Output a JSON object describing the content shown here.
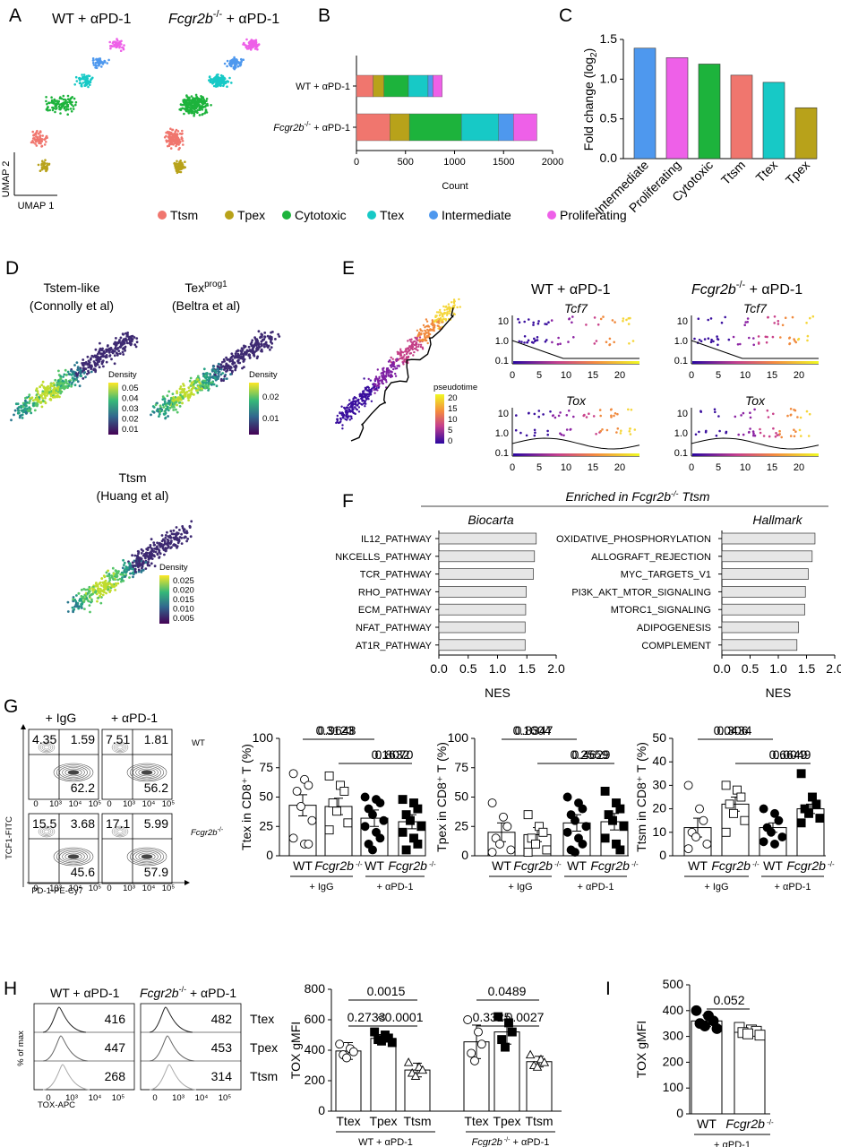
{
  "panels": {
    "A": {
      "label": "A",
      "title_wt": "WT + αPD-1",
      "title_ko_gene": "Fcgr2b",
      "title_ko_sup": "-/-",
      "title_ko_tail": " + αPD-1",
      "axis_x": "UMAP 1",
      "axis_y": "UMAP 2",
      "legend": [
        {
          "name": "Ttsm",
          "color": "#F0766E"
        },
        {
          "name": "Tpex",
          "color": "#B8A21A"
        },
        {
          "name": "Cytotoxic",
          "color": "#1DB33C"
        },
        {
          "name": "Ttex",
          "color": "#17C9C6"
        },
        {
          "name": "Intermediate",
          "color": "#4E98EE"
        },
        {
          "name": "Proliferating",
          "color": "#EE60E8"
        }
      ]
    },
    "D": {
      "label": "D",
      "tstem_line1": "Tstem-like",
      "tstem_line2": "(Connolly et al)",
      "texprog_main": "Tex",
      "texprog_sup": "prog1",
      "texprog_line2": "(Beltra et al)",
      "ttsm_line1": "Ttsm",
      "ttsm_line2": "(Huang et al)",
      "density_label": "Density",
      "scale1": [
        "0.05",
        "0.04",
        "0.03",
        "0.02",
        "0.01"
      ],
      "scale2": [
        "0.02",
        "0.01"
      ],
      "scale3": [
        "0.025",
        "0.020",
        "0.015",
        "0.010",
        "0.005"
      ]
    },
    "E": {
      "label": "E",
      "pseudotime_label": "pseudotime",
      "pseudotime_ticks": [
        "20",
        "15",
        "10",
        "5",
        "0"
      ],
      "wt_title": "WT + αPD-1",
      "ko_title_gene": "Fcgr2b",
      "ko_title_sup": "-/-",
      "ko_title_tail": " + αPD-1",
      "gene1": "Tcf7",
      "gene2": "Tox",
      "y_ticks": [
        "10",
        "1.0",
        "0.1"
      ],
      "x_ticks": [
        "0",
        "5",
        "10",
        "15",
        "20"
      ]
    },
    "F": {
      "label": "F",
      "header_pre": "Enriched in ",
      "header_gene": "Fcgr2b",
      "header_sup": "-/-",
      "header_post": " Ttsm",
      "biocarta_title": "Biocarta",
      "hallmark_title": "Hallmark",
      "xlabel": "NES",
      "x_ticks": [
        "0.0",
        "0.5",
        "1.0",
        "1.5",
        "2.0"
      ]
    },
    "G": {
      "label": "G",
      "col1": "+ IgG",
      "col2": "+ αPD-1",
      "row_wt": "WT",
      "row_ko_gene": "Fcgr2b",
      "row_ko_sup": "-/-",
      "x_axis": "PD-1-PE-Cy7",
      "y_axis": "TCF1-FITC",
      "quadrants": [
        {
          "tl": "4.35",
          "tr": "1.59",
          "br": "62.2"
        },
        {
          "tl": "7.51",
          "tr": "1.81",
          "br": "56.2"
        },
        {
          "tl": "15.5",
          "tr": "3.68",
          "br": "45.6"
        },
        {
          "tl": "17.1",
          "tr": "5.99",
          "br": "57.9"
        }
      ],
      "ticks_x": [
        "0",
        "10³",
        "10⁴",
        "10⁵"
      ]
    },
    "H": {
      "label": "H",
      "wt_title": "WT + αPD-1",
      "ko_title_gene": "Fcgr2b",
      "ko_title_sup": "-/-",
      "ko_title_tail": " + αPD-1",
      "x_axis": "TOX-APC",
      "y_axis": "% of max",
      "ticks_x": [
        "0",
        "10³",
        "10⁴",
        "10⁵"
      ],
      "rows": [
        "Ttex",
        "Tpex",
        "Ttsm"
      ],
      "wt_values": [
        "416",
        "447",
        "268"
      ],
      "ko_values": [
        "482",
        "453",
        "314"
      ]
    },
    "I": {
      "label": "I"
    }
  },
  "chart_data": [
    {
      "id": "B",
      "type": "bar",
      "title": "B",
      "orientation": "horizontal-stacked",
      "xlabel": "Count",
      "xlim": [
        0,
        2000
      ],
      "x_ticks": [
        0,
        500,
        1000,
        1500,
        2000
      ],
      "categories": [
        "WT + αPD-1",
        "Fcgr2b-/- + αPD-1"
      ],
      "category_display": [
        {
          "gene": "",
          "sup": "",
          "tail": "WT + αPD-1"
        },
        {
          "gene": "Fcgr2b",
          "sup": "-/-",
          "tail": " + αPD-1"
        }
      ],
      "series": [
        {
          "name": "Ttsm",
          "color": "#F0766E",
          "values": [
            170,
            340
          ]
        },
        {
          "name": "Tpex",
          "color": "#B8A21A",
          "values": [
            110,
            200
          ]
        },
        {
          "name": "Cytotoxic",
          "color": "#1DB33C",
          "values": [
            250,
            530
          ]
        },
        {
          "name": "Ttex",
          "color": "#17C9C6",
          "values": [
            200,
            380
          ]
        },
        {
          "name": "Intermediate",
          "color": "#4E98EE",
          "values": [
            50,
            150
          ]
        },
        {
          "name": "Proliferating",
          "color": "#EE60E8",
          "values": [
            95,
            240
          ]
        }
      ]
    },
    {
      "id": "C",
      "type": "bar",
      "title": "C",
      "ylabel_main": "Fold change (log",
      "ylabel_sub": "2",
      "ylabel_end": ")",
      "ylim": [
        0,
        1.5
      ],
      "y_ticks": [
        "0.0",
        "0.5",
        "1.0",
        "1.5"
      ],
      "categories": [
        "Intermediate",
        "Proliferating",
        "Cytotoxic",
        "Ttsm",
        "Ttex",
        "Tpex"
      ],
      "values": [
        1.39,
        1.27,
        1.19,
        1.05,
        0.96,
        0.64
      ],
      "colors": [
        "#4E98EE",
        "#EE60E8",
        "#1DB33C",
        "#F0766E",
        "#17C9C6",
        "#B8A21A"
      ]
    },
    {
      "id": "F-biocarta",
      "type": "bar",
      "orientation": "horizontal",
      "xlabel": "NES",
      "xlim": [
        0,
        2.0
      ],
      "categories": [
        "IL12_PATHWAY",
        "NKCELLS_PATHWAY",
        "TCR_PATHWAY",
        "RHO_PATHWAY",
        "ECM_PATHWAY",
        "NFAT_PATHWAY",
        "AT1R_PATHWAY"
      ],
      "values": [
        1.66,
        1.63,
        1.61,
        1.49,
        1.48,
        1.47,
        1.47
      ]
    },
    {
      "id": "F-hallmark",
      "type": "bar",
      "orientation": "horizontal",
      "xlabel": "NES",
      "xlim": [
        0,
        2.0
      ],
      "categories": [
        "OXIDATIVE_PHOSPHORYLATION",
        "ALLOGRAFT_REJECTION",
        "MYC_TARGETS_V1",
        "PI3K_AKT_MTOR_SIGNALING",
        "MTORC1_SIGNALING",
        "ADIPOGENESIS",
        "COMPLEMENT"
      ],
      "values": [
        1.65,
        1.6,
        1.53,
        1.48,
        1.47,
        1.36,
        1.33
      ]
    },
    {
      "id": "G-ttex",
      "type": "bar",
      "ylabel": "Ttex in CD8⁺ T (%)",
      "ylim": [
        0,
        100
      ],
      "y_ticks": [
        "0",
        "25",
        "50",
        "75",
        "100"
      ],
      "groups": [
        "+ IgG",
        "+ αPD-1"
      ],
      "bars": [
        {
          "label": "WT",
          "mean": 43,
          "sem": 9,
          "marker": "circle-open",
          "points": [
            70,
            65,
            60,
            55,
            42,
            30,
            15,
            10,
            10
          ]
        },
        {
          "label": "Fcgr2b -/-",
          "mean": 42,
          "sem": 7,
          "marker": "square-open",
          "points": [
            68,
            60,
            55,
            45,
            38,
            28,
            22
          ]
        },
        {
          "label": "WT",
          "mean": 32,
          "sem": 7,
          "marker": "circle-filled",
          "points": [
            50,
            48,
            45,
            40,
            35,
            30,
            25,
            20,
            15,
            10,
            5
          ]
        },
        {
          "label": "Fcgr2b -/-",
          "mean": 29,
          "sem": 6,
          "marker": "square-filled",
          "points": [
            48,
            45,
            40,
            35,
            30,
            25,
            20,
            15,
            10,
            5
          ]
        }
      ],
      "pvalues": [
        {
          "text": "0.3123",
          "from": 0,
          "to": 2
        },
        {
          "text": "0.8070",
          "from": 2,
          "to": 3
        },
        {
          "text": "0.9648",
          "from": 0,
          "to": 1
        },
        {
          "text": "0.1632",
          "from": 1,
          "to": 3
        }
      ]
    },
    {
      "id": "G-tpex",
      "type": "bar",
      "ylabel": "Tpex in CD8⁺ T (%)",
      "ylim": [
        0,
        100
      ],
      "y_ticks": [
        "0",
        "25",
        "50",
        "75",
        "100"
      ],
      "groups": [
        "+ IgG",
        "+ αPD-1"
      ],
      "bars": [
        {
          "label": "WT",
          "mean": 20,
          "sem": 8,
          "marker": "circle-open",
          "points": [
            45,
            33,
            25,
            15,
            10,
            5,
            3
          ]
        },
        {
          "label": "Fcgr2b -/-",
          "mean": 18,
          "sem": 6,
          "marker": "square-open",
          "points": [
            35,
            25,
            20,
            15,
            10,
            5,
            3
          ]
        },
        {
          "label": "WT",
          "mean": 28,
          "sem": 7,
          "marker": "circle-filled",
          "points": [
            50,
            45,
            40,
            35,
            30,
            25,
            20,
            15,
            10,
            5,
            3
          ]
        },
        {
          "label": "Fcgr2b -/-",
          "mean": 29,
          "sem": 7,
          "marker": "square-filled",
          "points": [
            55,
            45,
            40,
            35,
            30,
            25,
            15,
            10,
            5
          ]
        }
      ],
      "pvalues": [
        {
          "text": "0.1604",
          "from": 0,
          "to": 2
        },
        {
          "text": "0.4629",
          "from": 2,
          "to": 3
        },
        {
          "text": "0.8347",
          "from": 0,
          "to": 1
        },
        {
          "text": "0.2559",
          "from": 1,
          "to": 3
        }
      ]
    },
    {
      "id": "G-ttsm",
      "type": "bar",
      "ylabel": "Ttsm in CD8⁺ T (%)",
      "ylim": [
        0,
        50
      ],
      "y_ticks": [
        "0",
        "10",
        "20",
        "30",
        "40",
        "50"
      ],
      "groups": [
        "+ IgG",
        "+ αPD-1"
      ],
      "bars": [
        {
          "label": "WT",
          "mean": 12,
          "sem": 4,
          "marker": "circle-open",
          "points": [
            30,
            20,
            15,
            10,
            8,
            5,
            3
          ]
        },
        {
          "label": "Fcgr2b -/-",
          "mean": 22,
          "sem": 3,
          "marker": "square-open",
          "points": [
            30,
            28,
            25,
            22,
            18,
            15,
            10
          ]
        },
        {
          "label": "WT",
          "mean": 12,
          "sem": 2,
          "marker": "circle-filled",
          "points": [
            20,
            18,
            15,
            12,
            10,
            8,
            6,
            5
          ]
        },
        {
          "label": "Fcgr2b -/-",
          "mean": 20,
          "sem": 2,
          "marker": "square-filled",
          "points": [
            35,
            25,
            22,
            20,
            18,
            16,
            14
          ]
        }
      ],
      "pvalues": [
        {
          "text": "0.306",
          "from": 0,
          "to": 2
        },
        {
          "text": "0.0049",
          "from": 2,
          "to": 3
        },
        {
          "text": "0.0434",
          "from": 0,
          "to": 1
        },
        {
          "text": "0.6649",
          "from": 1,
          "to": 3
        }
      ]
    },
    {
      "id": "H-tox",
      "type": "bar",
      "ylabel": "TOX gMFI",
      "ylim": [
        0,
        800
      ],
      "y_ticks": [
        "0",
        "200",
        "400",
        "600",
        "800"
      ],
      "groups": [
        "WT + αPD-1",
        "Fcgr2b -/- + αPD-1"
      ],
      "bars": [
        {
          "label": "Ttex",
          "mean": 395,
          "sem": 55,
          "marker": "circle-open",
          "points": [
            440,
            410,
            390,
            370,
            350
          ]
        },
        {
          "label": "Tpex",
          "mean": 478,
          "sem": 25,
          "marker": "square-filled",
          "points": [
            520,
            500,
            480,
            470,
            460,
            450
          ]
        },
        {
          "label": "Ttsm",
          "mean": 270,
          "sem": 45,
          "marker": "triangle-open",
          "points": [
            320,
            290,
            270,
            250,
            230
          ]
        },
        {
          "label": "Ttex",
          "mean": 455,
          "sem": 110,
          "marker": "circle-open",
          "points": [
            600,
            520,
            440,
            380,
            330
          ]
        },
        {
          "label": "Tpex",
          "mean": 520,
          "sem": 80,
          "marker": "square-filled",
          "points": [
            620,
            580,
            520,
            470,
            420
          ]
        },
        {
          "label": "Ttsm",
          "mean": 325,
          "sem": 35,
          "marker": "triangle-open",
          "points": [
            370,
            340,
            320,
            300,
            290
          ]
        }
      ],
      "pvalues": [
        {
          "text": "0.0015",
          "from": 0,
          "to": 2
        },
        {
          "text": "0.2733",
          "from": 0,
          "to": 1
        },
        {
          "text": "<0.0001",
          "from": 1,
          "to": 2
        },
        {
          "text": "0.0489",
          "from": 3,
          "to": 5
        },
        {
          "text": "0.3325",
          "from": 3,
          "to": 4
        },
        {
          "text": "0.0027",
          "from": 4,
          "to": 5
        }
      ]
    },
    {
      "id": "I-tox",
      "type": "bar",
      "ylabel": "TOX gMFI",
      "ylim": [
        0,
        500
      ],
      "y_ticks": [
        "0",
        "100",
        "200",
        "300",
        "400",
        "500"
      ],
      "groups": [
        "+ αPD-1"
      ],
      "bars": [
        {
          "label": "WT",
          "mean": 360,
          "sem": 22,
          "marker": "circle-filled",
          "points": [
            400,
            380,
            360,
            350,
            340,
            330
          ]
        },
        {
          "label": "Fcgr2b -/-",
          "mean": 318,
          "sem": 10,
          "marker": "square-open",
          "points": [
            335,
            325,
            320,
            315,
            310,
            305
          ]
        }
      ],
      "pvalues": [
        {
          "text": "0.052",
          "from": 0,
          "to": 1
        }
      ]
    }
  ]
}
